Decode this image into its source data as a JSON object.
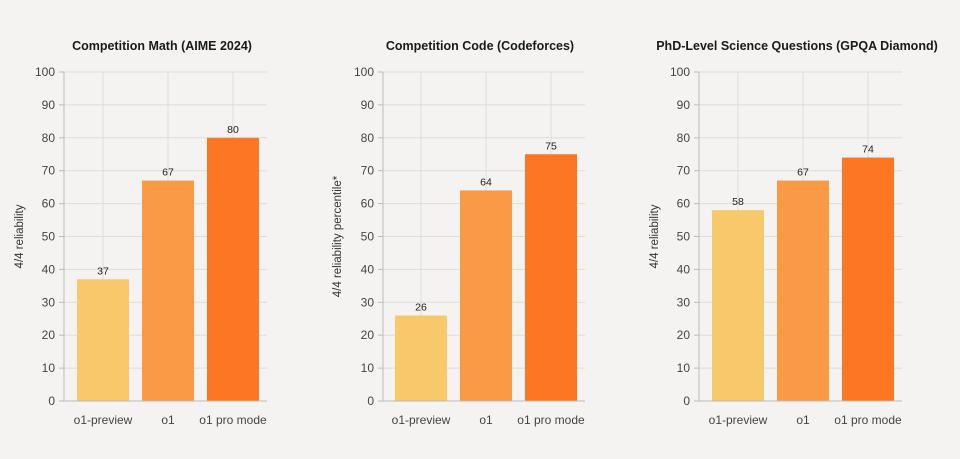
{
  "colors": {
    "background": "#f4f3f1",
    "series": [
      "#f7c96a",
      "#fa9a44",
      "#fc7623"
    ]
  },
  "chart_data": [
    {
      "type": "bar",
      "title": "Competition Math (AIME 2024)",
      "ylabel": "4/4 reliability",
      "xlabel": "",
      "categories": [
        "o1-preview",
        "o1",
        "o1 pro mode"
      ],
      "values": [
        37,
        67,
        80
      ],
      "ylim": [
        0,
        100
      ],
      "yticks": [
        0,
        10,
        20,
        30,
        40,
        50,
        60,
        70,
        80,
        90,
        100
      ],
      "grid": true
    },
    {
      "type": "bar",
      "title": "Competition Code (Codeforces)",
      "ylabel": "4/4 reliability percentile*",
      "xlabel": "",
      "categories": [
        "o1-preview",
        "o1",
        "o1 pro mode"
      ],
      "values": [
        26,
        64,
        75
      ],
      "ylim": [
        0,
        100
      ],
      "yticks": [
        0,
        10,
        20,
        30,
        40,
        50,
        60,
        70,
        80,
        90,
        100
      ],
      "grid": true
    },
    {
      "type": "bar",
      "title": "PhD-Level Science Questions (GPQA Diamond)",
      "ylabel": "4/4 reliability",
      "xlabel": "",
      "categories": [
        "o1-preview",
        "o1",
        "o1 pro mode"
      ],
      "values": [
        58,
        67,
        74
      ],
      "ylim": [
        0,
        100
      ],
      "yticks": [
        0,
        10,
        20,
        30,
        40,
        50,
        60,
        70,
        80,
        90,
        100
      ],
      "grid": true
    }
  ]
}
